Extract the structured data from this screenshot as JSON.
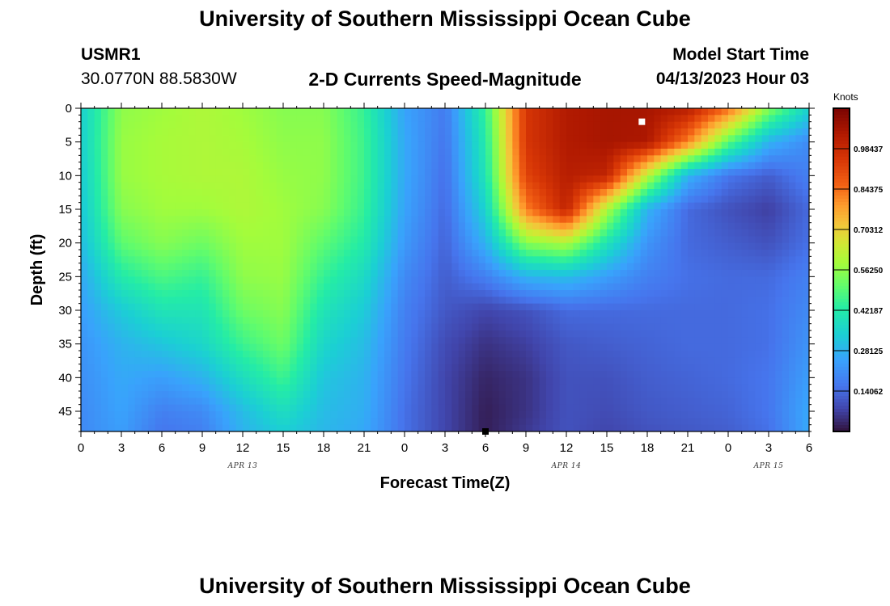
{
  "header": {
    "title": "University of Southern Mississippi Ocean Cube",
    "station_id": "USMR1",
    "station_coords": "30.0770N  88.5830W",
    "subtitle": "2-D Currents Speed-Magnitude",
    "model_start_label": "Model Start Time",
    "model_start_value": "04/13/2023 Hour 03"
  },
  "footer": {
    "title": "University of Southern Mississippi Ocean Cube"
  },
  "chart_data": {
    "type": "heatmap",
    "title": "2-D Currents Speed-Magnitude",
    "xlabel": "Forecast Time(Z)",
    "ylabel": "Depth (ft)",
    "x_range_hours": [
      0,
      54
    ],
    "y_range_ft": [
      0,
      48
    ],
    "y_inverted": true,
    "x_tick_labels": [
      "0",
      "3",
      "6",
      "9",
      "12",
      "15",
      "18",
      "21",
      "0",
      "3",
      "6",
      "9",
      "12",
      "15",
      "18",
      "21",
      "0",
      "3",
      "6"
    ],
    "y_tick_labels": [
      "0",
      "5",
      "10",
      "15",
      "20",
      "25",
      "30",
      "35",
      "40",
      "45"
    ],
    "date_labels": [
      {
        "label": "APR 13",
        "hour": 12
      },
      {
        "label": "APR 14",
        "hour": 36
      },
      {
        "label": "APR 15",
        "hour": 51
      }
    ],
    "colorbar": {
      "unit": "Knots",
      "range": [
        0,
        1.125
      ],
      "tick_labels": [
        "0.98437",
        "0.84375",
        "0.70312",
        "0.56250",
        "0.42187",
        "0.28125",
        "0.14062"
      ],
      "tick_values": [
        0.98437,
        0.84375,
        0.70312,
        0.5625,
        0.42187,
        0.28125,
        0.14062
      ]
    },
    "rows_depth_ft": [
      0,
      5,
      10,
      15,
      20,
      25,
      30,
      35,
      40,
      45,
      48
    ],
    "columns_hour": [
      0,
      3,
      6,
      9,
      12,
      15,
      18,
      21,
      24,
      27,
      30,
      33,
      36,
      39,
      42,
      45,
      48,
      51,
      54
    ],
    "values": [
      [
        0.34,
        0.56,
        0.58,
        0.6,
        0.58,
        0.55,
        0.55,
        0.45,
        0.25,
        0.17,
        0.45,
        0.95,
        1.03,
        1.05,
        1.05,
        1.02,
        0.85,
        0.55,
        0.35
      ],
      [
        0.34,
        0.57,
        0.59,
        0.6,
        0.59,
        0.56,
        0.56,
        0.46,
        0.26,
        0.16,
        0.42,
        0.95,
        1.03,
        1.05,
        1.04,
        0.82,
        0.5,
        0.28,
        0.2
      ],
      [
        0.33,
        0.57,
        0.59,
        0.6,
        0.6,
        0.57,
        0.56,
        0.46,
        0.26,
        0.15,
        0.4,
        0.92,
        1.02,
        1.0,
        0.62,
        0.28,
        0.16,
        0.12,
        0.18
      ],
      [
        0.32,
        0.55,
        0.58,
        0.58,
        0.6,
        0.58,
        0.55,
        0.45,
        0.25,
        0.14,
        0.35,
        0.82,
        1.0,
        0.6,
        0.28,
        0.14,
        0.1,
        0.07,
        0.14
      ],
      [
        0.3,
        0.5,
        0.55,
        0.52,
        0.58,
        0.58,
        0.5,
        0.42,
        0.23,
        0.13,
        0.28,
        0.55,
        0.6,
        0.4,
        0.22,
        0.14,
        0.12,
        0.1,
        0.15
      ],
      [
        0.26,
        0.42,
        0.48,
        0.45,
        0.56,
        0.57,
        0.45,
        0.37,
        0.2,
        0.12,
        0.18,
        0.28,
        0.3,
        0.24,
        0.18,
        0.15,
        0.14,
        0.14,
        0.18
      ],
      [
        0.24,
        0.33,
        0.4,
        0.4,
        0.52,
        0.55,
        0.4,
        0.33,
        0.18,
        0.11,
        0.08,
        0.1,
        0.14,
        0.14,
        0.14,
        0.14,
        0.14,
        0.15,
        0.2
      ],
      [
        0.22,
        0.28,
        0.32,
        0.36,
        0.46,
        0.52,
        0.36,
        0.3,
        0.17,
        0.09,
        0.05,
        0.07,
        0.11,
        0.12,
        0.13,
        0.14,
        0.14,
        0.15,
        0.22
      ],
      [
        0.21,
        0.26,
        0.24,
        0.28,
        0.38,
        0.46,
        0.32,
        0.28,
        0.16,
        0.08,
        0.03,
        0.05,
        0.1,
        0.1,
        0.12,
        0.13,
        0.14,
        0.16,
        0.24
      ],
      [
        0.2,
        0.25,
        0.18,
        0.2,
        0.3,
        0.38,
        0.3,
        0.27,
        0.15,
        0.08,
        0.02,
        0.05,
        0.1,
        0.09,
        0.11,
        0.12,
        0.13,
        0.16,
        0.26
      ],
      [
        0.2,
        0.24,
        0.16,
        0.18,
        0.28,
        0.34,
        0.29,
        0.26,
        0.15,
        0.08,
        0.02,
        0.06,
        0.1,
        0.08,
        0.1,
        0.11,
        0.12,
        0.15,
        0.26
      ]
    ],
    "markers": [
      {
        "name": "white-square-marker",
        "hour": 41.6,
        "depth_ft": 2,
        "color": "#ffffff"
      },
      {
        "name": "black-square-marker",
        "hour": 30,
        "depth_ft": 48,
        "color": "#000000"
      }
    ]
  }
}
